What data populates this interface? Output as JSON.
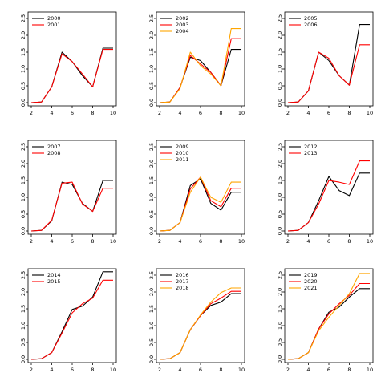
{
  "figure": {
    "layout": "3x3 grid of line plots",
    "shared_axes": true
  },
  "chart_data": [
    {
      "type": "line",
      "x": [
        2,
        3,
        4,
        5,
        6,
        7,
        8,
        9,
        10
      ],
      "xlim": [
        2,
        10
      ],
      "ylim": [
        0,
        2.5
      ],
      "xticks": [
        2,
        4,
        6,
        8,
        10
      ],
      "yticks": [
        0.0,
        0.5,
        1.0,
        1.5,
        2.0,
        2.5
      ],
      "legend_position": "top-left",
      "series": [
        {
          "name": "2000",
          "color": "#000000",
          "values": [
            0,
            0.02,
            0.47,
            1.5,
            1.22,
            0.8,
            0.47,
            1.62,
            1.62
          ]
        },
        {
          "name": "2001",
          "color": "#ff0000",
          "values": [
            0,
            0.02,
            0.47,
            1.45,
            1.22,
            0.85,
            0.47,
            1.58,
            1.58
          ]
        }
      ]
    },
    {
      "type": "line",
      "x": [
        2,
        3,
        4,
        5,
        6,
        7,
        8,
        9,
        10
      ],
      "xlim": [
        2,
        10
      ],
      "ylim": [
        0,
        2.5
      ],
      "xticks": [
        2,
        4,
        6,
        8,
        10
      ],
      "yticks": [
        0.0,
        0.5,
        1.0,
        1.5,
        2.0,
        2.5
      ],
      "legend_position": "top-left",
      "series": [
        {
          "name": "2002",
          "color": "#000000",
          "values": [
            0,
            0.02,
            0.45,
            1.35,
            1.25,
            0.9,
            0.5,
            1.58,
            1.58
          ]
        },
        {
          "name": "2003",
          "color": "#ff0000",
          "values": [
            0,
            0.02,
            0.45,
            1.4,
            1.15,
            0.9,
            0.5,
            1.9,
            1.9
          ]
        },
        {
          "name": "2004",
          "color": "#ffa500",
          "values": [
            0,
            0.02,
            0.42,
            1.5,
            1.1,
            0.85,
            0.5,
            2.2,
            2.2
          ]
        }
      ]
    },
    {
      "type": "line",
      "x": [
        2,
        3,
        4,
        5,
        6,
        7,
        8,
        9,
        10
      ],
      "xlim": [
        2,
        10
      ],
      "ylim": [
        0,
        2.5
      ],
      "xticks": [
        2,
        4,
        6,
        8,
        10
      ],
      "yticks": [
        0.0,
        0.5,
        1.0,
        1.5,
        2.0,
        2.5
      ],
      "legend_position": "top-left",
      "series": [
        {
          "name": "2005",
          "color": "#000000",
          "values": [
            0,
            0.02,
            0.35,
            1.5,
            1.25,
            0.8,
            0.52,
            2.32,
            2.32
          ]
        },
        {
          "name": "2006",
          "color": "#ff0000",
          "values": [
            0,
            0.02,
            0.35,
            1.5,
            1.32,
            0.8,
            0.52,
            1.72,
            1.72
          ]
        }
      ]
    },
    {
      "type": "line",
      "x": [
        2,
        3,
        4,
        5,
        6,
        7,
        8,
        9,
        10
      ],
      "xlim": [
        2,
        10
      ],
      "ylim": [
        0,
        2.5
      ],
      "xticks": [
        2,
        4,
        6,
        8,
        10
      ],
      "yticks": [
        0.0,
        0.5,
        1.0,
        1.5,
        2.0,
        2.5
      ],
      "legend_position": "top-left",
      "series": [
        {
          "name": "2007",
          "color": "#000000",
          "values": [
            0,
            0.02,
            0.3,
            1.45,
            1.38,
            0.82,
            0.58,
            1.5,
            1.5
          ]
        },
        {
          "name": "2008",
          "color": "#ff0000",
          "values": [
            0,
            0.02,
            0.32,
            1.42,
            1.45,
            0.8,
            0.58,
            1.27,
            1.27
          ]
        }
      ]
    },
    {
      "type": "line",
      "x": [
        2,
        3,
        4,
        5,
        6,
        7,
        8,
        9,
        10
      ],
      "xlim": [
        2,
        10
      ],
      "ylim": [
        0,
        2.5
      ],
      "xticks": [
        2,
        4,
        6,
        8,
        10
      ],
      "yticks": [
        0.0,
        0.5,
        1.0,
        1.5,
        2.0,
        2.5
      ],
      "legend_position": "top-left",
      "series": [
        {
          "name": "2009",
          "color": "#000000",
          "values": [
            0,
            0.02,
            0.25,
            1.35,
            1.55,
            0.82,
            0.62,
            1.15,
            1.15
          ]
        },
        {
          "name": "2010",
          "color": "#ff0000",
          "values": [
            0,
            0.02,
            0.25,
            1.25,
            1.6,
            0.9,
            0.72,
            1.27,
            1.27
          ]
        },
        {
          "name": "2011",
          "color": "#ffa500",
          "values": [
            0,
            0.02,
            0.25,
            1.15,
            1.6,
            1.0,
            0.85,
            1.45,
            1.45
          ]
        }
      ]
    },
    {
      "type": "line",
      "x": [
        2,
        3,
        4,
        5,
        6,
        7,
        8,
        9,
        10
      ],
      "xlim": [
        2,
        10
      ],
      "ylim": [
        0,
        2.5
      ],
      "xticks": [
        2,
        4,
        6,
        8,
        10
      ],
      "yticks": [
        0.0,
        0.5,
        1.0,
        1.5,
        2.0,
        2.5
      ],
      "legend_position": "top-left",
      "series": [
        {
          "name": "2012",
          "color": "#000000",
          "values": [
            0,
            0.02,
            0.25,
            0.9,
            1.62,
            1.2,
            1.05,
            1.72,
            1.72
          ]
        },
        {
          "name": "2013",
          "color": "#ff0000",
          "values": [
            0,
            0.02,
            0.25,
            0.8,
            1.5,
            1.45,
            1.38,
            2.08,
            2.08
          ]
        }
      ]
    },
    {
      "type": "line",
      "x": [
        2,
        3,
        4,
        5,
        6,
        7,
        8,
        9,
        10
      ],
      "xlim": [
        2,
        10
      ],
      "ylim": [
        0,
        2.5
      ],
      "xticks": [
        2,
        4,
        6,
        8,
        10
      ],
      "yticks": [
        0.0,
        0.5,
        1.0,
        1.5,
        2.0,
        2.5
      ],
      "legend_position": "top-left",
      "series": [
        {
          "name": "2014",
          "color": "#000000",
          "values": [
            0,
            0.02,
            0.2,
            0.82,
            1.48,
            1.58,
            1.85,
            2.6,
            2.6
          ]
        },
        {
          "name": "2015",
          "color": "#ff0000",
          "values": [
            0,
            0.02,
            0.2,
            0.78,
            1.38,
            1.65,
            1.82,
            2.35,
            2.35
          ]
        }
      ]
    },
    {
      "type": "line",
      "x": [
        2,
        3,
        4,
        5,
        6,
        7,
        8,
        9,
        10
      ],
      "xlim": [
        2,
        10
      ],
      "ylim": [
        0,
        2.5
      ],
      "xticks": [
        2,
        4,
        6,
        8,
        10
      ],
      "yticks": [
        0.0,
        0.5,
        1.0,
        1.5,
        2.0,
        2.5
      ],
      "legend_position": "top-left",
      "series": [
        {
          "name": "2016",
          "color": "#000000",
          "values": [
            0,
            0.02,
            0.2,
            0.88,
            1.3,
            1.6,
            1.7,
            1.95,
            1.95
          ]
        },
        {
          "name": "2017",
          "color": "#ff0000",
          "values": [
            0,
            0.02,
            0.2,
            0.88,
            1.3,
            1.65,
            1.82,
            2.02,
            2.02
          ]
        },
        {
          "name": "2018",
          "color": "#ffa500",
          "values": [
            0,
            0.02,
            0.2,
            0.88,
            1.32,
            1.7,
            1.98,
            2.12,
            2.12
          ]
        }
      ]
    },
    {
      "type": "line",
      "x": [
        2,
        3,
        4,
        5,
        6,
        7,
        8,
        9,
        10
      ],
      "xlim": [
        2,
        10
      ],
      "ylim": [
        0,
        2.5
      ],
      "xticks": [
        2,
        4,
        6,
        8,
        10
      ],
      "yticks": [
        0.0,
        0.5,
        1.0,
        1.5,
        2.0,
        2.5
      ],
      "legend_position": "top-left",
      "series": [
        {
          "name": "2019",
          "color": "#000000",
          "values": [
            0,
            0.02,
            0.2,
            0.9,
            1.4,
            1.55,
            1.85,
            2.1,
            2.1
          ]
        },
        {
          "name": "2020",
          "color": "#ff0000",
          "values": [
            0,
            0.02,
            0.2,
            0.9,
            1.35,
            1.65,
            1.9,
            2.25,
            2.25
          ]
        },
        {
          "name": "2021",
          "color": "#ffa500",
          "values": [
            0,
            0.02,
            0.2,
            0.85,
            1.25,
            1.6,
            1.95,
            2.55,
            2.55
          ]
        }
      ]
    }
  ]
}
